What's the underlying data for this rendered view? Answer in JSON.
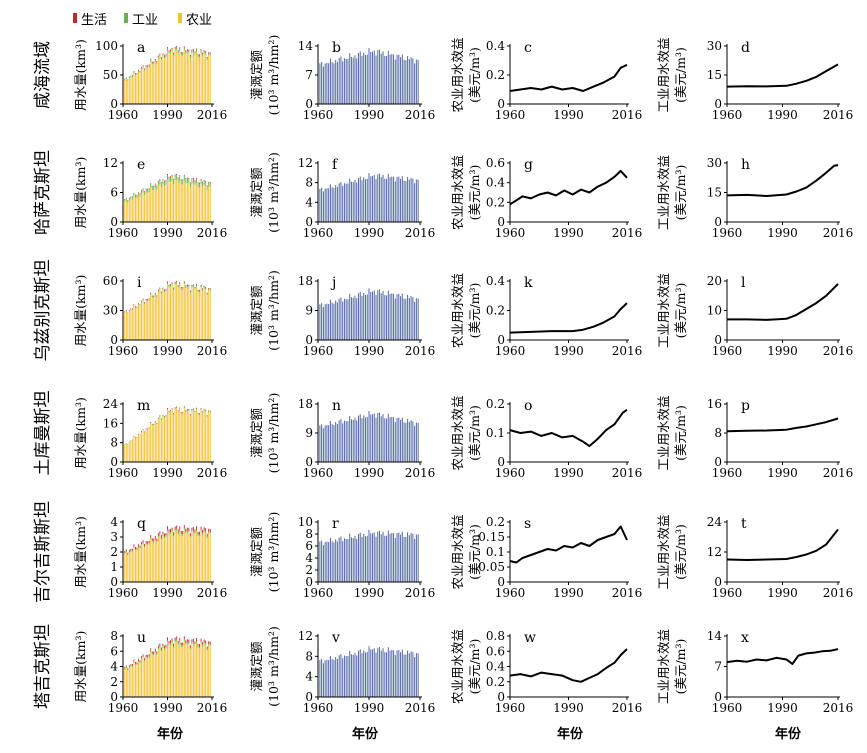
{
  "legend": {
    "items": [
      {
        "label": "生活",
        "color": "#c0282d"
      },
      {
        "label": "工业",
        "color": "#6ab04c"
      },
      {
        "label": "农业",
        "color": "#f2c02f"
      }
    ]
  },
  "x_axis_label": "年份",
  "x_ticks": [
    "1960",
    "1990",
    "2016"
  ],
  "column_ylabels": {
    "col1": "用水量(km³)",
    "col2": [
      "灌溉定额",
      "(10³ m³/hm²)"
    ],
    "col3": [
      "农业用水效益",
      "(美元/m³)"
    ],
    "col4": [
      "工业用水效益",
      "(美元/m³)"
    ]
  },
  "row_names": [
    "咸海流域",
    "哈萨克斯坦",
    "乌兹别克斯坦",
    "土库曼斯坦",
    "吉尔吉斯斯坦",
    "塔吉克斯坦"
  ],
  "bar_colors": {
    "agriculture": "#f2c02f",
    "industry": "#6ab04c",
    "domestic": "#c0282d",
    "irrigation": "#5a6fa8"
  },
  "line_color": "#000000",
  "chart_data": [
    {
      "panel": "a",
      "type": "bar",
      "series": [
        "农业",
        "工业",
        "生活"
      ],
      "x_range": [
        1960,
        2016
      ],
      "ylim": [
        0,
        100
      ],
      "yticks": [
        0,
        50,
        100
      ],
      "start": 42,
      "peak": 96,
      "end": 88,
      "ind_share": 0.04,
      "dom_share": 0.025
    },
    {
      "panel": "b",
      "type": "bar",
      "x_range": [
        1960,
        2016
      ],
      "ylim": [
        0,
        14
      ],
      "yticks": [
        0,
        7,
        14
      ],
      "start": 9.5,
      "peak": 12.8,
      "end": 10.5
    },
    {
      "panel": "c",
      "type": "line",
      "x_range": [
        1960,
        2016
      ],
      "ylim": [
        0,
        0.4
      ],
      "yticks": [
        0,
        0.2,
        0.4
      ],
      "points": [
        [
          1960,
          0.09
        ],
        [
          1965,
          0.1
        ],
        [
          1970,
          0.11
        ],
        [
          1975,
          0.1
        ],
        [
          1980,
          0.12
        ],
        [
          1985,
          0.1
        ],
        [
          1990,
          0.11
        ],
        [
          1995,
          0.09
        ],
        [
          2000,
          0.12
        ],
        [
          2005,
          0.15
        ],
        [
          2010,
          0.19
        ],
        [
          2013,
          0.25
        ],
        [
          2016,
          0.27
        ]
      ]
    },
    {
      "panel": "d",
      "type": "line",
      "x_range": [
        1960,
        2016
      ],
      "ylim": [
        0,
        30
      ],
      "yticks": [
        0,
        15,
        30
      ],
      "points": [
        [
          1960,
          9
        ],
        [
          1970,
          9.2
        ],
        [
          1980,
          9.1
        ],
        [
          1990,
          9.4
        ],
        [
          1995,
          10.5
        ],
        [
          2000,
          12
        ],
        [
          2005,
          14
        ],
        [
          2010,
          17
        ],
        [
          2016,
          20.5
        ]
      ]
    },
    {
      "panel": "e",
      "type": "bar",
      "series": [
        "农业",
        "工业",
        "生活"
      ],
      "x_range": [
        1960,
        2016
      ],
      "ylim": [
        0,
        12
      ],
      "yticks": [
        0,
        6,
        12
      ],
      "start": 4.5,
      "peak": 9.5,
      "end": 8.0,
      "ind_share": 0.1,
      "dom_share": 0.02
    },
    {
      "panel": "f",
      "type": "bar",
      "x_range": [
        1960,
        2016
      ],
      "ylim": [
        0,
        12
      ],
      "yticks": [
        0,
        4,
        8,
        12
      ],
      "start": 6.5,
      "peak": 9.5,
      "end": 8.5
    },
    {
      "panel": "g",
      "type": "line",
      "x_range": [
        1960,
        2016
      ],
      "ylim": [
        0,
        0.6
      ],
      "yticks": [
        0,
        0.2,
        0.4,
        0.6
      ],
      "points": [
        [
          1960,
          0.18
        ],
        [
          1963,
          0.22
        ],
        [
          1966,
          0.26
        ],
        [
          1970,
          0.24
        ],
        [
          1974,
          0.28
        ],
        [
          1978,
          0.3
        ],
        [
          1982,
          0.27
        ],
        [
          1986,
          0.32
        ],
        [
          1990,
          0.28
        ],
        [
          1994,
          0.33
        ],
        [
          1998,
          0.3
        ],
        [
          2002,
          0.36
        ],
        [
          2006,
          0.4
        ],
        [
          2010,
          0.46
        ],
        [
          2013,
          0.52
        ],
        [
          2016,
          0.45
        ]
      ]
    },
    {
      "panel": "h",
      "type": "line",
      "x_range": [
        1960,
        2016
      ],
      "ylim": [
        0,
        30
      ],
      "yticks": [
        0,
        15,
        30
      ],
      "points": [
        [
          1960,
          13.5
        ],
        [
          1970,
          13.8
        ],
        [
          1980,
          13.2
        ],
        [
          1990,
          14
        ],
        [
          1995,
          15.5
        ],
        [
          2000,
          17.5
        ],
        [
          2005,
          21
        ],
        [
          2010,
          25
        ],
        [
          2014,
          28.5
        ],
        [
          2016,
          29
        ]
      ]
    },
    {
      "panel": "i",
      "type": "bar",
      "series": [
        "农业",
        "工业",
        "生活"
      ],
      "x_range": [
        1960,
        2016
      ],
      "ylim": [
        0,
        60
      ],
      "yticks": [
        0,
        30,
        60
      ],
      "start": 28,
      "peak": 58,
      "end": 52,
      "ind_share": 0.03,
      "dom_share": 0.02
    },
    {
      "panel": "j",
      "type": "bar",
      "x_range": [
        1960,
        2016
      ],
      "ylim": [
        0,
        18
      ],
      "yticks": [
        0,
        9,
        18
      ],
      "start": 10.5,
      "peak": 15,
      "end": 12.5
    },
    {
      "panel": "k",
      "type": "line",
      "x_range": [
        1960,
        2016
      ],
      "ylim": [
        0,
        0.4
      ],
      "yticks": [
        0,
        0.2,
        0.4
      ],
      "points": [
        [
          1960,
          0.05
        ],
        [
          1970,
          0.055
        ],
        [
          1980,
          0.06
        ],
        [
          1990,
          0.06
        ],
        [
          1995,
          0.07
        ],
        [
          2000,
          0.09
        ],
        [
          2005,
          0.12
        ],
        [
          2010,
          0.16
        ],
        [
          2013,
          0.21
        ],
        [
          2016,
          0.25
        ]
      ]
    },
    {
      "panel": "l",
      "type": "line",
      "x_range": [
        1960,
        2016
      ],
      "ylim": [
        0,
        20
      ],
      "yticks": [
        0,
        10,
        20
      ],
      "points": [
        [
          1960,
          7
        ],
        [
          1970,
          7
        ],
        [
          1980,
          6.8
        ],
        [
          1990,
          7.2
        ],
        [
          1995,
          8.5
        ],
        [
          2000,
          10.5
        ],
        [
          2005,
          12.5
        ],
        [
          2010,
          15
        ],
        [
          2016,
          19
        ]
      ]
    },
    {
      "panel": "m",
      "type": "bar",
      "series": [
        "农业",
        "工业",
        "生活"
      ],
      "x_range": [
        1960,
        2016
      ],
      "ylim": [
        0,
        24
      ],
      "yticks": [
        0,
        8,
        16,
        24
      ],
      "start": 7,
      "peak": 22,
      "end": 21,
      "ind_share": 0.02,
      "dom_share": 0.015
    },
    {
      "panel": "n",
      "type": "bar",
      "x_range": [
        1960,
        2016
      ],
      "ylim": [
        0,
        18
      ],
      "yticks": [
        0,
        9,
        18
      ],
      "start": 11,
      "peak": 15,
      "end": 12
    },
    {
      "panel": "o",
      "type": "line",
      "x_range": [
        1960,
        2016
      ],
      "ylim": [
        0,
        0.2
      ],
      "yticks": [
        0,
        0.1,
        0.2
      ],
      "points": [
        [
          1960,
          0.11
        ],
        [
          1965,
          0.1
        ],
        [
          1970,
          0.105
        ],
        [
          1975,
          0.09
        ],
        [
          1980,
          0.1
        ],
        [
          1985,
          0.085
        ],
        [
          1990,
          0.09
        ],
        [
          1995,
          0.07
        ],
        [
          1998,
          0.055
        ],
        [
          2002,
          0.08
        ],
        [
          2006,
          0.11
        ],
        [
          2010,
          0.13
        ],
        [
          2014,
          0.17
        ],
        [
          2016,
          0.18
        ]
      ]
    },
    {
      "panel": "p",
      "type": "line",
      "x_range": [
        1960,
        2016
      ],
      "ylim": [
        0,
        16
      ],
      "yticks": [
        0,
        8,
        16
      ],
      "points": [
        [
          1960,
          8.5
        ],
        [
          1970,
          8.6
        ],
        [
          1980,
          8.7
        ],
        [
          1990,
          8.9
        ],
        [
          1995,
          9.4
        ],
        [
          2000,
          9.8
        ],
        [
          2005,
          10.4
        ],
        [
          2010,
          11
        ],
        [
          2016,
          12
        ]
      ]
    },
    {
      "panel": "q",
      "type": "bar",
      "series": [
        "农业",
        "工业",
        "生活"
      ],
      "x_range": [
        1960,
        2016
      ],
      "ylim": [
        0,
        4
      ],
      "yticks": [
        0,
        1,
        2,
        3,
        4
      ],
      "start": 2.0,
      "peak": 3.6,
      "end": 3.5,
      "ind_share": 0.03,
      "dom_share": 0.06
    },
    {
      "panel": "r",
      "type": "bar",
      "x_range": [
        1960,
        2016
      ],
      "ylim": [
        0,
        10
      ],
      "yticks": [
        0,
        2,
        4,
        6,
        8,
        10
      ],
      "start": 6.5,
      "peak": 8.2,
      "end": 7.8
    },
    {
      "panel": "s",
      "type": "line",
      "x_range": [
        1960,
        2016
      ],
      "ylim": [
        0,
        0.2
      ],
      "yticks": [
        0,
        0.05,
        0.1,
        0.15,
        0.2
      ],
      "points": [
        [
          1960,
          0.07
        ],
        [
          1963,
          0.065
        ],
        [
          1966,
          0.08
        ],
        [
          1970,
          0.09
        ],
        [
          1974,
          0.1
        ],
        [
          1978,
          0.11
        ],
        [
          1982,
          0.105
        ],
        [
          1986,
          0.12
        ],
        [
          1990,
          0.115
        ],
        [
          1994,
          0.13
        ],
        [
          1998,
          0.12
        ],
        [
          2002,
          0.14
        ],
        [
          2006,
          0.15
        ],
        [
          2010,
          0.16
        ],
        [
          2013,
          0.185
        ],
        [
          2016,
          0.14
        ]
      ]
    },
    {
      "panel": "t",
      "type": "line",
      "x_range": [
        1960,
        2016
      ],
      "ylim": [
        0,
        24
      ],
      "yticks": [
        0,
        12,
        24
      ],
      "points": [
        [
          1960,
          9
        ],
        [
          1970,
          8.8
        ],
        [
          1980,
          9
        ],
        [
          1990,
          9.2
        ],
        [
          1995,
          10
        ],
        [
          2000,
          11
        ],
        [
          2005,
          12.5
        ],
        [
          2010,
          15
        ],
        [
          2016,
          21
        ]
      ]
    },
    {
      "panel": "u",
      "type": "bar",
      "series": [
        "农业",
        "工业",
        "生活"
      ],
      "x_range": [
        1960,
        2016
      ],
      "ylim": [
        0,
        8
      ],
      "yticks": [
        0,
        2,
        4,
        6,
        8
      ],
      "start": 3.8,
      "peak": 7.6,
      "end": 7.2,
      "ind_share": 0.03,
      "dom_share": 0.05
    },
    {
      "panel": "v",
      "type": "bar",
      "x_range": [
        1960,
        2016
      ],
      "ylim": [
        0,
        12
      ],
      "yticks": [
        0,
        4,
        8,
        12
      ],
      "start": 7,
      "peak": 9.5,
      "end": 8.5
    },
    {
      "panel": "w",
      "type": "line",
      "x_range": [
        1960,
        2016
      ],
      "ylim": [
        0,
        0.8
      ],
      "yticks": [
        0,
        0.2,
        0.4,
        0.6,
        0.8
      ],
      "points": [
        [
          1960,
          0.28
        ],
        [
          1965,
          0.3
        ],
        [
          1970,
          0.27
        ],
        [
          1975,
          0.32
        ],
        [
          1980,
          0.3
        ],
        [
          1985,
          0.28
        ],
        [
          1990,
          0.22
        ],
        [
          1994,
          0.2
        ],
        [
          1998,
          0.25
        ],
        [
          2002,
          0.3
        ],
        [
          2006,
          0.38
        ],
        [
          2010,
          0.45
        ],
        [
          2013,
          0.55
        ],
        [
          2016,
          0.63
        ]
      ]
    },
    {
      "panel": "x",
      "type": "line",
      "x_range": [
        1960,
        2016
      ],
      "ylim": [
        0,
        14
      ],
      "yticks": [
        0,
        7,
        14
      ],
      "points": [
        [
          1960,
          8
        ],
        [
          1965,
          8.3
        ],
        [
          1970,
          8.1
        ],
        [
          1975,
          8.6
        ],
        [
          1980,
          8.4
        ],
        [
          1985,
          9
        ],
        [
          1990,
          8.6
        ],
        [
          1993,
          7.6
        ],
        [
          1996,
          9.5
        ],
        [
          2000,
          10
        ],
        [
          2004,
          10.2
        ],
        [
          2008,
          10.5
        ],
        [
          2012,
          10.6
        ],
        [
          2016,
          11
        ]
      ]
    }
  ]
}
